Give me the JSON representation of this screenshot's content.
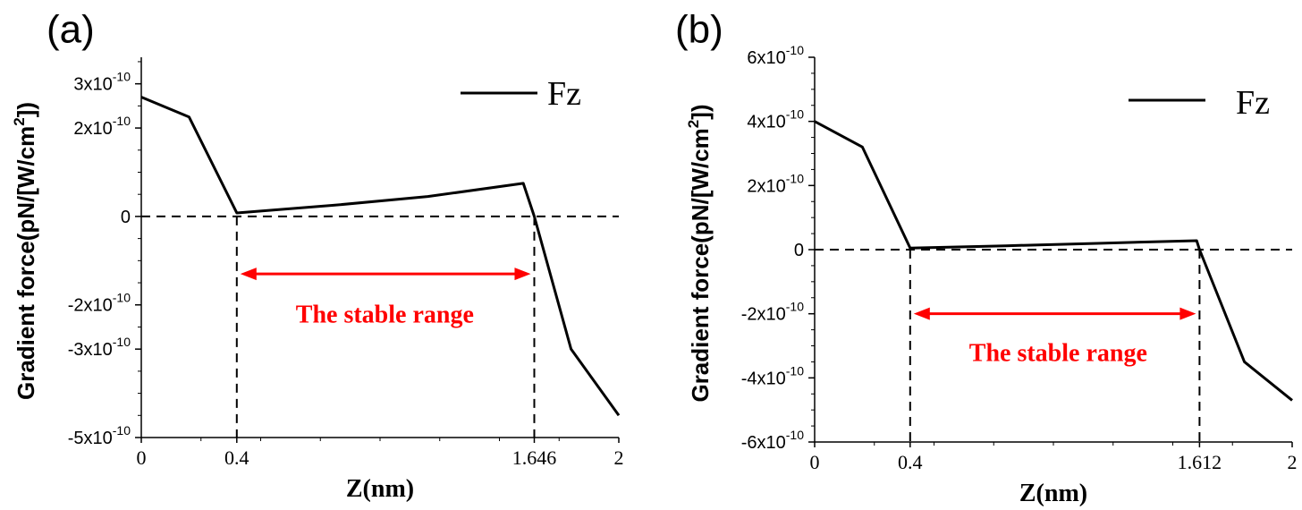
{
  "chart_data": [
    {
      "type": "line",
      "panel_label": "(a)",
      "xlabel": "Z(nm)",
      "ylabel_main": "Gradient force(pN/[W/cm",
      "ylabel_sup": "2",
      "ylabel_end": "])",
      "xlim": [
        0,
        2
      ],
      "ylim": [
        -0.5,
        0.36
      ],
      "x_ticks": [
        {
          "value": 0,
          "label": "0"
        },
        {
          "value": 0.4,
          "label": "0.4"
        },
        {
          "value": 1.646,
          "label": "1.646"
        },
        {
          "value": 2,
          "label": "2"
        }
      ],
      "y_ticks": [
        {
          "value": 0.3,
          "label": "3x10",
          "exp": "-10"
        },
        {
          "value": 0.2,
          "label": "2x10",
          "exp": "-10"
        },
        {
          "value": 0,
          "label": "0",
          "exp": ""
        },
        {
          "value": -0.2,
          "label": "-2x10",
          "exp": "-10"
        },
        {
          "value": -0.3,
          "label": "-3x10",
          "exp": "-10"
        },
        {
          "value": -0.5,
          "label": "-5x10",
          "exp": "-10"
        }
      ],
      "series": [
        {
          "name": "Fz",
          "color": "#000000",
          "x": [
            0,
            0.2,
            0.4,
            0.8,
            1.2,
            1.6,
            1.646,
            1.8,
            2.0
          ],
          "y": [
            0.27,
            0.225,
            0.008,
            0.025,
            0.045,
            0.075,
            0.0,
            -0.3,
            -0.45
          ]
        }
      ],
      "zero_line": true,
      "vlines": [
        0.4,
        1.646
      ],
      "arrow": {
        "from": 0.4,
        "to": 1.646,
        "y": -0.13,
        "color": "#ff0000"
      },
      "annotation": {
        "text": "The stable range",
        "x": 1.02,
        "y": -0.22
      },
      "legend_loc": "top-right"
    },
    {
      "type": "line",
      "panel_label": "(b)",
      "xlabel": "Z(nm)",
      "ylabel_main": "Gradient force(pN/[W/cm",
      "ylabel_sup": "2",
      "ylabel_end": "])",
      "xlim": [
        0,
        2
      ],
      "ylim": [
        -0.6,
        0.6
      ],
      "x_ticks": [
        {
          "value": 0,
          "label": "0"
        },
        {
          "value": 0.4,
          "label": "0.4"
        },
        {
          "value": 1.612,
          "label": "1.612"
        },
        {
          "value": 2,
          "label": "2"
        }
      ],
      "y_ticks": [
        {
          "value": 0.6,
          "label": "6x10",
          "exp": "-10"
        },
        {
          "value": 0.4,
          "label": "4x10",
          "exp": "-10"
        },
        {
          "value": 0.2,
          "label": "2x10",
          "exp": "-10"
        },
        {
          "value": 0,
          "label": "0",
          "exp": ""
        },
        {
          "value": -0.2,
          "label": "-2x10",
          "exp": "-10"
        },
        {
          "value": -0.4,
          "label": "-4x10",
          "exp": "-10"
        },
        {
          "value": -0.6,
          "label": "-6x10",
          "exp": "-10"
        }
      ],
      "series": [
        {
          "name": "Fz",
          "color": "#000000",
          "x": [
            0,
            0.2,
            0.4,
            0.8,
            1.2,
            1.6,
            1.612,
            1.8,
            2.0
          ],
          "y": [
            0.4,
            0.32,
            0.005,
            0.012,
            0.02,
            0.028,
            0.0,
            -0.35,
            -0.47
          ]
        }
      ],
      "zero_line": true,
      "vlines": [
        0.4,
        1.612
      ],
      "arrow": {
        "from": 0.4,
        "to": 1.612,
        "y": -0.2,
        "color": "#ff0000"
      },
      "annotation": {
        "text": "The stable range",
        "x": 1.02,
        "y": -0.32
      },
      "legend_loc": "top-right"
    }
  ]
}
